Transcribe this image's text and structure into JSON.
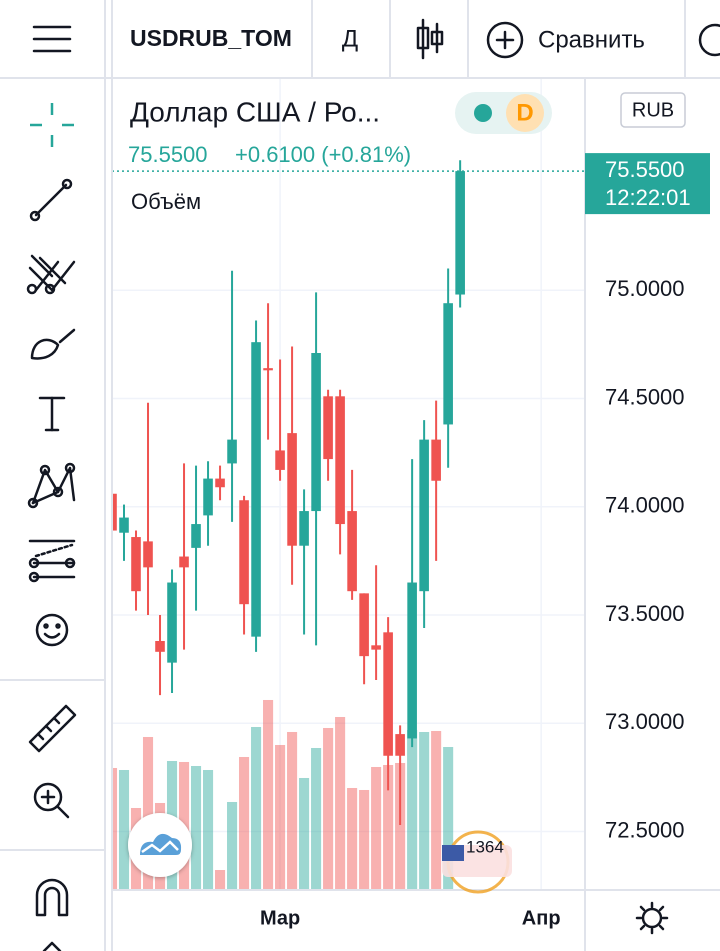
{
  "toolbar": {
    "symbol": "USDRUB_TOM",
    "interval": "Д",
    "compare": "Сравнить"
  },
  "chart_data": {
    "type": "candlestick",
    "title": "Доллар США / Ро...",
    "badge": "D",
    "currency": "RUB",
    "last_price": "75.5500",
    "change": "+0.6100 (+0.81%)",
    "volume_label": "Объём",
    "price_tag": {
      "value": 75.55,
      "label": "75.5500",
      "time": "12:22:01"
    },
    "up_color": "#26a69a",
    "down_color": "#ef5350",
    "open": [
      74.06,
      73.88,
      73.86,
      73.84,
      73.38,
      73.28,
      73.77,
      73.81,
      73.96,
      74.13,
      74.2,
      74.03,
      73.4,
      74.64,
      74.26,
      74.34,
      73.82,
      73.98,
      74.51,
      74.51,
      73.98,
      73.6,
      73.36,
      73.42,
      72.95,
      72.93,
      73.61,
      74.31,
      74.38,
      74.98
    ],
    "high": [
      74.06,
      74.01,
      73.89,
      74.48,
      73.5,
      73.71,
      74.2,
      74.19,
      74.21,
      74.19,
      75.09,
      74.05,
      74.86,
      74.94,
      74.68,
      74.74,
      74.08,
      74.99,
      74.54,
      74.54,
      74.17,
      73.6,
      73.73,
      73.49,
      72.99,
      74.22,
      74.4,
      74.49,
      75.1,
      75.6
    ],
    "low": [
      73.89,
      73.75,
      73.52,
      73.5,
      73.13,
      73.14,
      73.34,
      73.52,
      73.82,
      74.03,
      73.93,
      73.41,
      73.33,
      74.31,
      74.12,
      73.64,
      73.41,
      73.36,
      74.12,
      73.78,
      73.57,
      73.18,
      73.2,
      72.69,
      72.53,
      72.89,
      73.44,
      73.75,
      74.18,
      74.92
    ],
    "close": [
      73.89,
      73.95,
      73.61,
      73.72,
      73.33,
      73.65,
      73.72,
      73.92,
      74.13,
      74.09,
      74.31,
      73.55,
      74.76,
      74.63,
      74.17,
      73.82,
      73.98,
      74.71,
      74.22,
      73.92,
      73.61,
      73.31,
      73.34,
      72.85,
      72.85,
      73.65,
      74.31,
      74.12,
      74.94,
      75.55
    ],
    "volume": [
      122,
      120,
      82,
      153,
      87,
      129,
      128,
      124,
      120,
      20,
      88,
      133,
      163,
      190,
      145,
      158,
      112,
      142,
      162,
      173,
      102,
      100,
      123,
      125,
      127,
      160,
      158,
      159,
      143,
      null
    ],
    "xlim": [
      0,
      39.4
    ],
    "xticks": [
      {
        "value": 14,
        "label": "Мар"
      },
      {
        "value": 35.75,
        "label": "Апр"
      }
    ],
    "ylim": [
      72.23,
      75.98
    ],
    "yticks": [
      {
        "value": 72.5,
        "label": "72.5000"
      },
      {
        "value": 73,
        "label": "73.0000"
      },
      {
        "value": 73.5,
        "label": "73.5000"
      },
      {
        "value": 74,
        "label": "74.0000"
      },
      {
        "value": 74.5,
        "label": "74.5000"
      },
      {
        "value": 75,
        "label": "75.0000"
      }
    ],
    "watermark": "1364"
  }
}
